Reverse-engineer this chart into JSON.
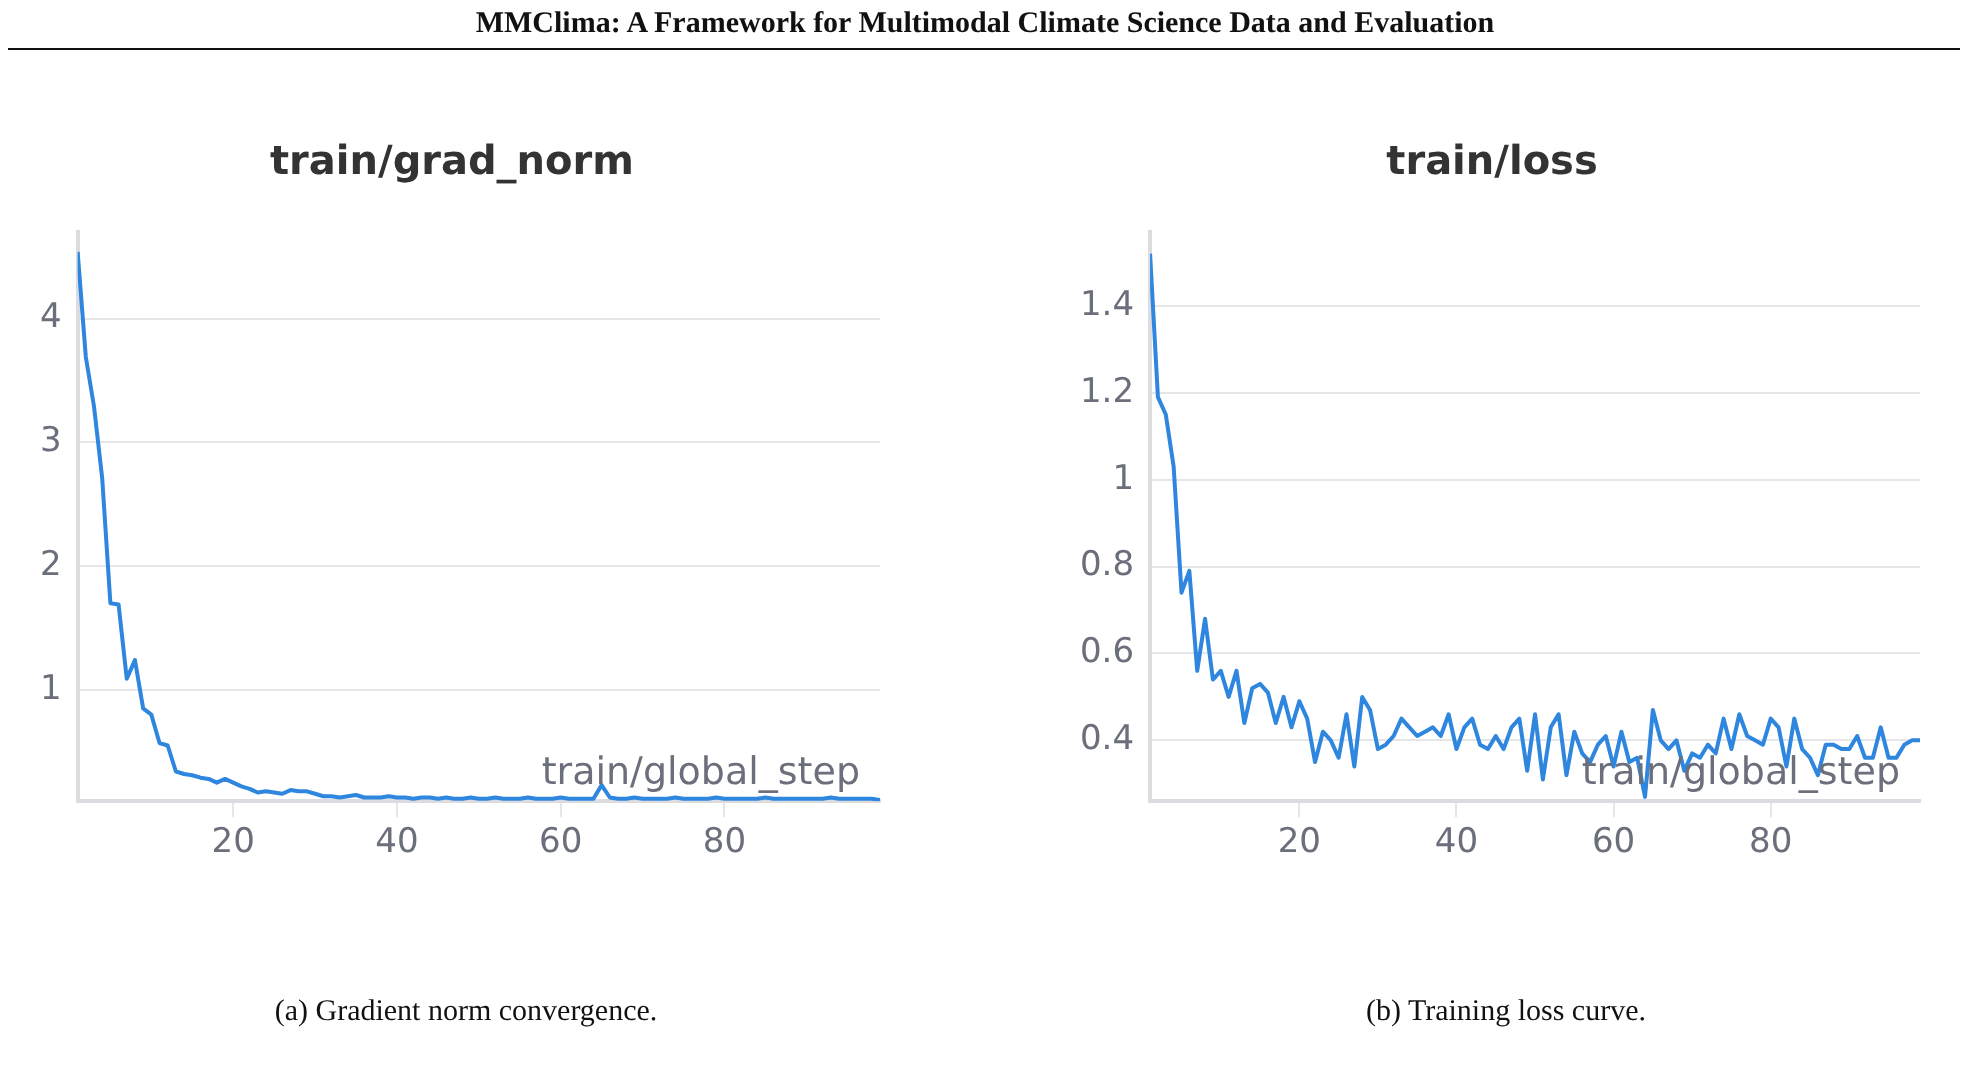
{
  "chart_data": [
    {
      "type": "line",
      "title": "train/grad_norm",
      "xlabel": "train/global_step",
      "annotations": [
        "MMClima: A Framework for Multimodal Climate Science Data and Evaluation",
        "(a) Gradient norm convergence."
      ],
      "x": [
        1,
        2,
        3,
        4,
        5,
        6,
        7,
        8,
        9,
        10,
        11,
        12,
        13,
        14,
        15,
        16,
        17,
        18,
        19,
        20,
        21,
        22,
        23,
        24,
        25,
        26,
        27,
        28,
        29,
        30,
        31,
        32,
        33,
        34,
        35,
        36,
        37,
        38,
        39,
        40,
        41,
        42,
        43,
        44,
        45,
        46,
        47,
        48,
        49,
        50,
        51,
        52,
        53,
        54,
        55,
        56,
        57,
        58,
        59,
        60,
        61,
        62,
        63,
        64,
        65,
        66,
        67,
        68,
        69,
        70,
        71,
        72,
        73,
        74,
        75,
        76,
        77,
        78,
        79,
        80,
        81,
        82,
        83,
        84,
        85,
        86,
        87,
        88,
        89,
        90,
        91,
        92,
        93,
        94,
        95,
        96,
        97,
        98,
        99
      ],
      "series": [
        {
          "color": "#2e86de",
          "values": [
            4.54,
            3.69,
            3.29,
            2.71,
            1.7,
            1.69,
            1.09,
            1.24,
            0.85,
            0.8,
            0.57,
            0.55,
            0.34,
            0.32,
            0.31,
            0.29,
            0.28,
            0.25,
            0.28,
            0.25,
            0.22,
            0.2,
            0.17,
            0.18,
            0.17,
            0.16,
            0.19,
            0.18,
            0.18,
            0.16,
            0.14,
            0.14,
            0.13,
            0.14,
            0.15,
            0.13,
            0.13,
            0.13,
            0.14,
            0.13,
            0.13,
            0.12,
            0.13,
            0.13,
            0.12,
            0.13,
            0.12,
            0.12,
            0.13,
            0.12,
            0.12,
            0.13,
            0.12,
            0.12,
            0.12,
            0.13,
            0.12,
            0.12,
            0.12,
            0.13,
            0.12,
            0.12,
            0.12,
            0.12,
            0.23,
            0.13,
            0.12,
            0.12,
            0.13,
            0.12,
            0.12,
            0.12,
            0.12,
            0.13,
            0.12,
            0.12,
            0.12,
            0.12,
            0.13,
            0.12,
            0.12,
            0.12,
            0.12,
            0.12,
            0.13,
            0.12,
            0.12,
            0.12,
            0.12,
            0.12,
            0.12,
            0.12,
            0.13,
            0.12,
            0.12,
            0.12,
            0.12,
            0.12,
            0.11
          ]
        }
      ],
      "xlim": [
        1,
        99
      ],
      "xticks": [
        20,
        40,
        60,
        80
      ],
      "ylim": [
        0.1,
        4.7
      ],
      "yticks": [
        1,
        2,
        3,
        4
      ],
      "grid": "y",
      "legend": false,
      "marker": "none",
      "line_style": "solid"
    },
    {
      "type": "line",
      "title": "train/loss",
      "xlabel": "train/global_step",
      "annotations": [
        "(b) Training loss curve."
      ],
      "x": [
        1,
        2,
        3,
        4,
        5,
        6,
        7,
        8,
        9,
        10,
        11,
        12,
        13,
        14,
        15,
        16,
        17,
        18,
        19,
        20,
        21,
        22,
        23,
        24,
        25,
        26,
        27,
        28,
        29,
        30,
        31,
        32,
        33,
        34,
        35,
        36,
        37,
        38,
        39,
        40,
        41,
        42,
        43,
        44,
        45,
        46,
        47,
        48,
        49,
        50,
        51,
        52,
        53,
        54,
        55,
        56,
        57,
        58,
        59,
        60,
        61,
        62,
        63,
        64,
        65,
        66,
        67,
        68,
        69,
        70,
        71,
        72,
        73,
        74,
        75,
        76,
        77,
        78,
        79,
        80,
        81,
        82,
        83,
        84,
        85,
        86,
        87,
        88,
        89,
        90,
        91,
        92,
        93,
        94,
        95,
        96,
        97,
        98,
        99
      ],
      "series": [
        {
          "color": "#2e86de",
          "values": [
            1.52,
            1.19,
            1.15,
            1.03,
            0.74,
            0.79,
            0.56,
            0.68,
            0.54,
            0.56,
            0.5,
            0.56,
            0.44,
            0.52,
            0.53,
            0.51,
            0.44,
            0.5,
            0.43,
            0.49,
            0.45,
            0.35,
            0.42,
            0.4,
            0.36,
            0.46,
            0.34,
            0.5,
            0.47,
            0.38,
            0.39,
            0.41,
            0.45,
            0.43,
            0.41,
            0.42,
            0.43,
            0.41,
            0.46,
            0.38,
            0.43,
            0.45,
            0.39,
            0.38,
            0.41,
            0.38,
            0.43,
            0.45,
            0.33,
            0.46,
            0.31,
            0.43,
            0.46,
            0.32,
            0.42,
            0.37,
            0.35,
            0.39,
            0.41,
            0.34,
            0.42,
            0.35,
            0.36,
            0.27,
            0.47,
            0.4,
            0.38,
            0.4,
            0.33,
            0.37,
            0.36,
            0.39,
            0.37,
            0.45,
            0.38,
            0.46,
            0.41,
            0.4,
            0.39,
            0.45,
            0.43,
            0.34,
            0.45,
            0.38,
            0.36,
            0.32,
            0.39,
            0.39,
            0.38,
            0.38,
            0.41,
            0.36,
            0.36,
            0.43,
            0.36,
            0.36,
            0.39,
            0.4,
            0.4
          ]
        }
      ],
      "xlim": [
        1,
        99
      ],
      "xticks": [
        20,
        40,
        60,
        80
      ],
      "ylim": [
        0.26,
        1.57
      ],
      "yticks": [
        0.4,
        0.6,
        0.8,
        1,
        1.2,
        1.4
      ],
      "grid": "y",
      "legend": false,
      "marker": "none",
      "line_style": "solid"
    }
  ]
}
